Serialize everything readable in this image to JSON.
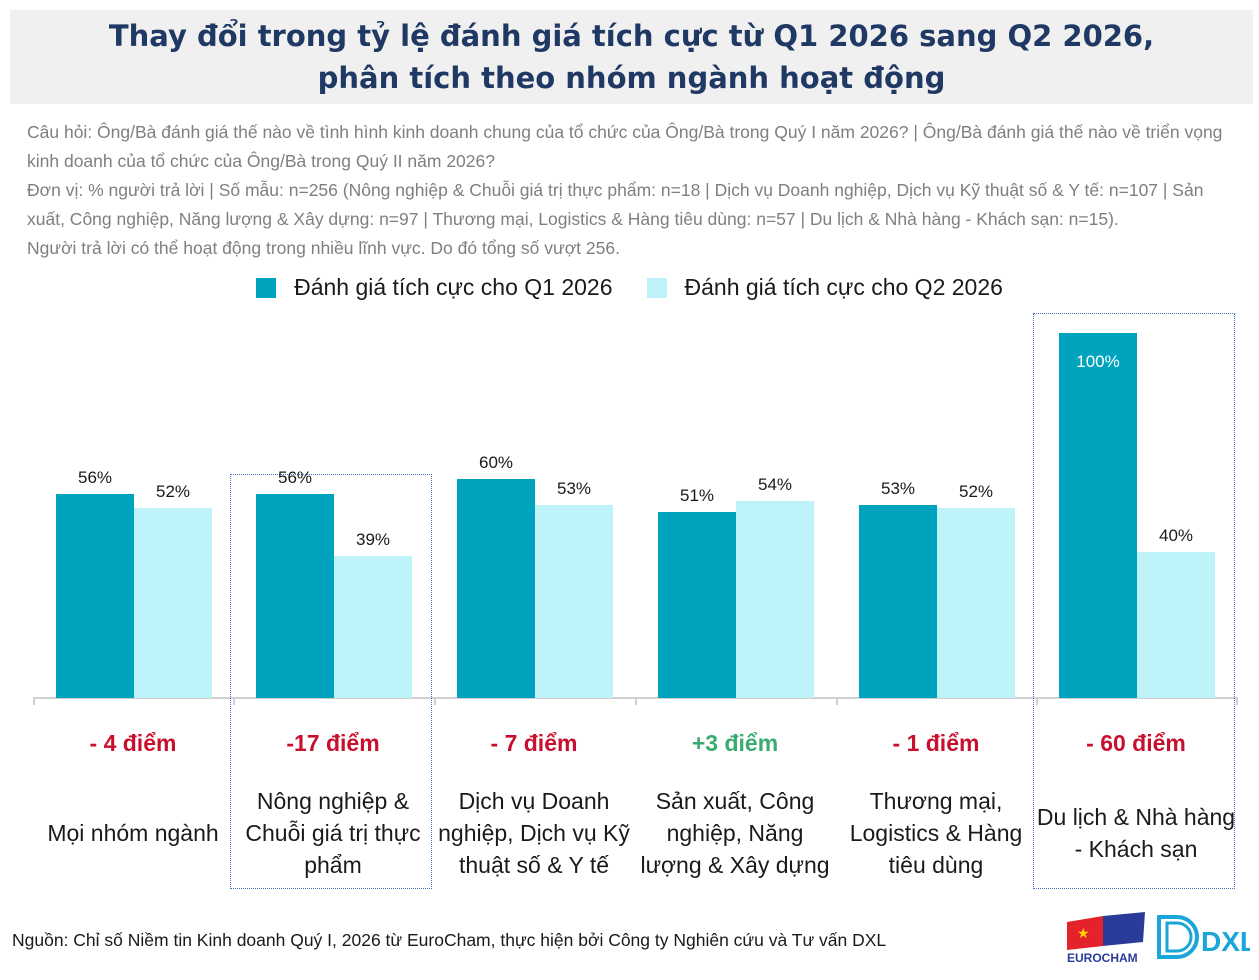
{
  "title": {
    "line1": "Thay đổi trong tỷ lệ đánh giá tích cực từ Q1 2026 sang Q2 2026,",
    "line2": "phân tích theo nhóm ngành hoạt động"
  },
  "notes": {
    "question": "Câu hỏi: Ông/Bà đánh giá thế nào về tình hình kinh doanh chung của tổ chức của Ông/Bà trong Quý I năm 2026? | Ông/Bà đánh giá thế nào về triển vọng kinh doanh của tổ chức của Ông/Bà trong Quý II năm 2026?",
    "unit": "Đơn vị: % người trả lời | Số mẫu: n=256 (Nông nghiệp & Chuỗi giá trị thực phẩm: n=18 | Dịch vụ Doanh nghiệp, Dịch vụ Kỹ thuật số & Y tế: n=107 | Sản xuất, Công nghiệp, Năng lượng & Xây dựng: n=97 | Thương mại, Logistics & Hàng tiêu dùng: n=57 | Du lịch & Nhà hàng - Khách sạn: n=15).",
    "remark": "Người trả lời có thể hoạt động trong nhiều lĩnh vực. Do đó tổng số vượt 256."
  },
  "source": "Nguồn: Chỉ số Niềm tin Kinh doanh Quý I, 2026 từ EuroCham, thực hiện bởi Công ty Nghiên cứu và Tư vấn DXL",
  "logos": {
    "eurocham": "EUROCHAM",
    "dxl": "DXL"
  },
  "chart_data": {
    "type": "bar",
    "categories": [
      "Mọi nhóm ngành",
      "Nông nghiệp & Chuỗi giá trị thực phẩm",
      "Dịch vụ Doanh nghiệp, Dịch vụ Kỹ thuật số & Y tế",
      "Sản xuất, Công nghiệp, Năng lượng & Xây dựng",
      "Thương mại, Logistics & Hàng tiêu dùng",
      "Du lịch & Nhà hàng - Khách sạn"
    ],
    "series": [
      {
        "name": "Đánh giá tích cực cho Q1 2026",
        "values": [
          56,
          56,
          60,
          51,
          53,
          100
        ],
        "color": "#00a3be"
      },
      {
        "name": "Đánh giá tích cực cho Q2 2026",
        "values": [
          52,
          39,
          53,
          54,
          52,
          40
        ],
        "color": "#bff3fa"
      }
    ],
    "differences": [
      "- 4 điểm",
      "-17 điểm",
      "- 7 điểm",
      "+3 điểm",
      "- 1 điểm",
      "- 60 điểm"
    ],
    "difference_colors": [
      "#c8102e",
      "#c8102e",
      "#c8102e",
      "#3aaa6e",
      "#c8102e",
      "#c8102e"
    ],
    "highlighted_categories": [
      1,
      5
    ],
    "unit_suffix": "%",
    "ylim": [
      0,
      100
    ],
    "legend": "top",
    "grid": false
  }
}
